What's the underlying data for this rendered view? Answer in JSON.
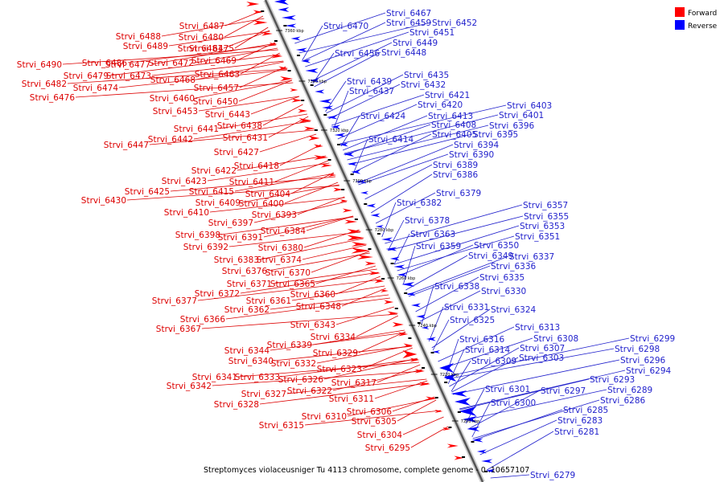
{
  "caption": "Streptomyces violaceusniger Tu 4113 chromosome, complete genome - 0..10657107",
  "legend": {
    "forward_label": "Forward",
    "reverse_label": "Reverse",
    "forward_color": "#ff0000",
    "reverse_color": "#0000ff"
  },
  "colors": {
    "forward_text": "#dd0000",
    "reverse_text": "#1f1fcc",
    "backbone": "#555555"
  },
  "ticks": [
    "7360 kbp",
    "7340 kbp",
    "7320 kbp",
    "7300 kbp",
    "7280 kbp",
    "7260 kbp",
    "7240 kbp",
    "7220 kbp",
    "7200 kbp"
  ],
  "forward_genes": [
    "Strvi_6487",
    "Strvi_6488",
    "Strvi_6480",
    "Strvi_6489",
    "Strvi_6481",
    "Strvi_6475",
    "Strvi_6490",
    "Strvi_6486",
    "Strvi_6477",
    "Strvi_6472",
    "Strvi_6469",
    "Strvi_6479",
    "Strvi_6473",
    "Strvi_6468",
    "Strvi_6463",
    "Strvi_6482",
    "Strvi_6474",
    "Strvi_6457",
    "Strvi_6476",
    "Strvi_6460",
    "Strvi_6450",
    "Strvi_6453",
    "Strvi_6443",
    "Strvi_6438",
    "Strvi_6441",
    "Strvi_6442",
    "Strvi_6431",
    "Strvi_6447",
    "Strvi_6427",
    "Strvi_6418",
    "Strvi_6422",
    "Strvi_6423",
    "Strvi_6411",
    "Strvi_6425",
    "Strvi_6415",
    "Strvi_6404",
    "Strvi_6430",
    "Strvi_6409",
    "Strvi_6400",
    "Strvi_6410",
    "Strvi_6393",
    "Strvi_6397",
    "Strvi_6384",
    "Strvi_6398",
    "Strvi_6391",
    "Strvi_6392",
    "Strvi_6380",
    "Strvi_6383",
    "Strvi_6374",
    "Strvi_6376",
    "Strvi_6370",
    "Strvi_6371",
    "Strvi_6365",
    "Strvi_6372",
    "Strvi_6361",
    "Strvi_6360",
    "Strvi_6377",
    "Strvi_6362",
    "Strvi_6348",
    "Strvi_6366",
    "Strvi_6367",
    "Strvi_6343",
    "Strvi_6334",
    "Strvi_6339",
    "Strvi_6344",
    "Strvi_6329",
    "Strvi_6340",
    "Strvi_6332",
    "Strvi_6323",
    "Strvi_6341",
    "Strvi_6333",
    "Strvi_6326",
    "Strvi_6342",
    "Strvi_6317",
    "Strvi_6322",
    "Strvi_6327",
    "Strvi_6311",
    "Strvi_6328",
    "Strvi_6306",
    "Strvi_6310",
    "Strvi_6305",
    "Strvi_6315",
    "Strvi_6304",
    "Strvi_6295"
  ],
  "reverse_genes": [
    "Strvi_6467",
    "Strvi_6470",
    "Strvi_6459",
    "Strvi_6452",
    "Strvi_6451",
    "Strvi_6449",
    "Strvi_6456",
    "Strvi_6448",
    "Strvi_6435",
    "Strvi_6439",
    "Strvi_6432",
    "Strvi_6437",
    "Strvi_6421",
    "Strvi_6420",
    "Strvi_6403",
    "Strvi_6424",
    "Strvi_6413",
    "Strvi_6401",
    "Strvi_6408",
    "Strvi_6396",
    "Strvi_6405",
    "Strvi_6395",
    "Strvi_6414",
    "Strvi_6394",
    "Strvi_6390",
    "Strvi_6389",
    "Strvi_6386",
    "Strvi_6379",
    "Strvi_6382",
    "Strvi_6357",
    "Strvi_6378",
    "Strvi_6355",
    "Strvi_6353",
    "Strvi_6363",
    "Strvi_6351",
    "Strvi_6359",
    "Strvi_6350",
    "Strvi_6349",
    "Strvi_6337",
    "Strvi_6336",
    "Strvi_6335",
    "Strvi_6338",
    "Strvi_6330",
    "Strvi_6331",
    "Strvi_6324",
    "Strvi_6325",
    "Strvi_6313",
    "Strvi_6316",
    "Strvi_6308",
    "Strvi_6314",
    "Strvi_6307",
    "Strvi_6309",
    "Strvi_6303",
    "Strvi_6299",
    "Strvi_6298",
    "Strvi_6296",
    "Strvi_6294",
    "Strvi_6293",
    "Strvi_6301",
    "Strvi_6297",
    "Strvi_6289",
    "Strvi_6300",
    "Strvi_6286",
    "Strvi_6285",
    "Strvi_6283",
    "Strvi_6281",
    "Strvi_6279"
  ]
}
